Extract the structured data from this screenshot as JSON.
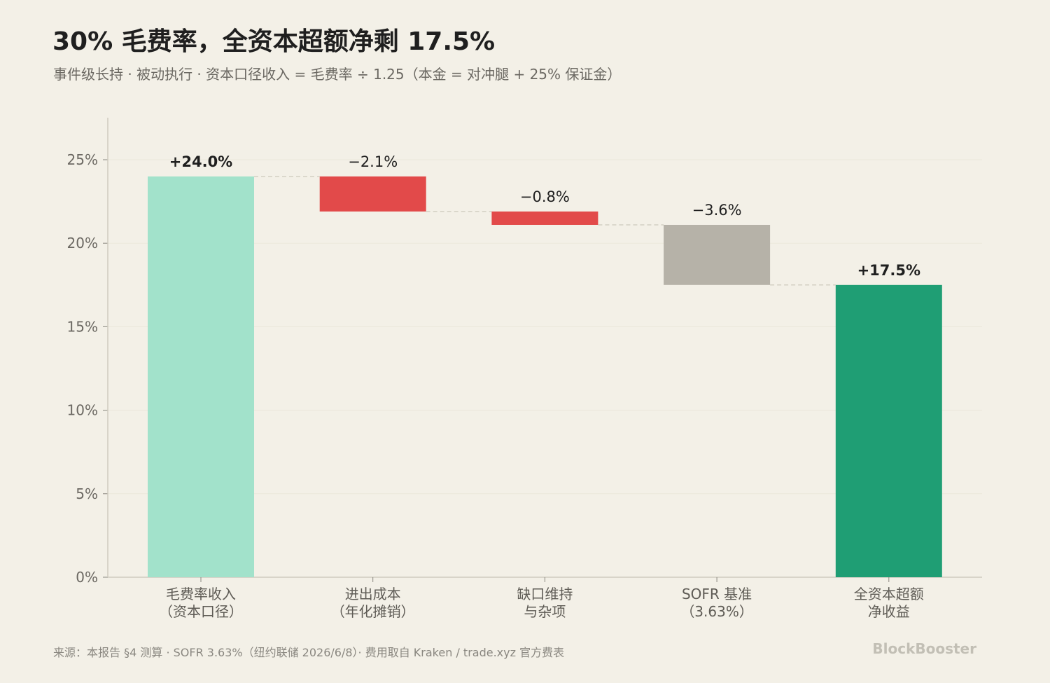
{
  "header": {
    "title": "30% 毛费率，全资本超额净剩 17.5%",
    "subtitle": "事件级长持 · 被动执行 · 资本口径收入 = 毛费率 ÷ 1.25（本金 = 对冲腿 + 25% 保证金）"
  },
  "footer": {
    "source": "来源：本报告 §4 测算 · SOFR 3.63%（纽约联储 2026/6/8）· 费用取自 Kraken / trade.xyz 官方费表",
    "brand": "BlockBooster"
  },
  "chart_data": {
    "type": "bar",
    "subtype": "waterfall",
    "categories": [
      [
        "毛费率收入",
        "（资本口径）"
      ],
      [
        "进出成本",
        "（年化摊销）"
      ],
      [
        "缺口维持",
        "与杂项"
      ],
      [
        "SOFR 基准",
        "（3.63%）"
      ],
      [
        "全资本超额",
        "净收益"
      ]
    ],
    "values": [
      24.0,
      -2.1,
      -0.8,
      -3.6,
      17.5
    ],
    "kinds": [
      "total",
      "delta",
      "delta",
      "delta",
      "total"
    ],
    "value_labels": [
      "+24.0%",
      "−2.1%",
      "−0.8%",
      "−3.6%",
      "+17.5%"
    ],
    "colors": [
      "#a2e2cb",
      "#e24a4a",
      "#e24a4a",
      "#b6b2a8",
      "#1f9e74"
    ],
    "yticks": [
      "0%",
      "5%",
      "10%",
      "15%",
      "20%",
      "25%"
    ],
    "ylim": [
      0,
      27.5
    ],
    "grid": true,
    "legend": "none"
  }
}
